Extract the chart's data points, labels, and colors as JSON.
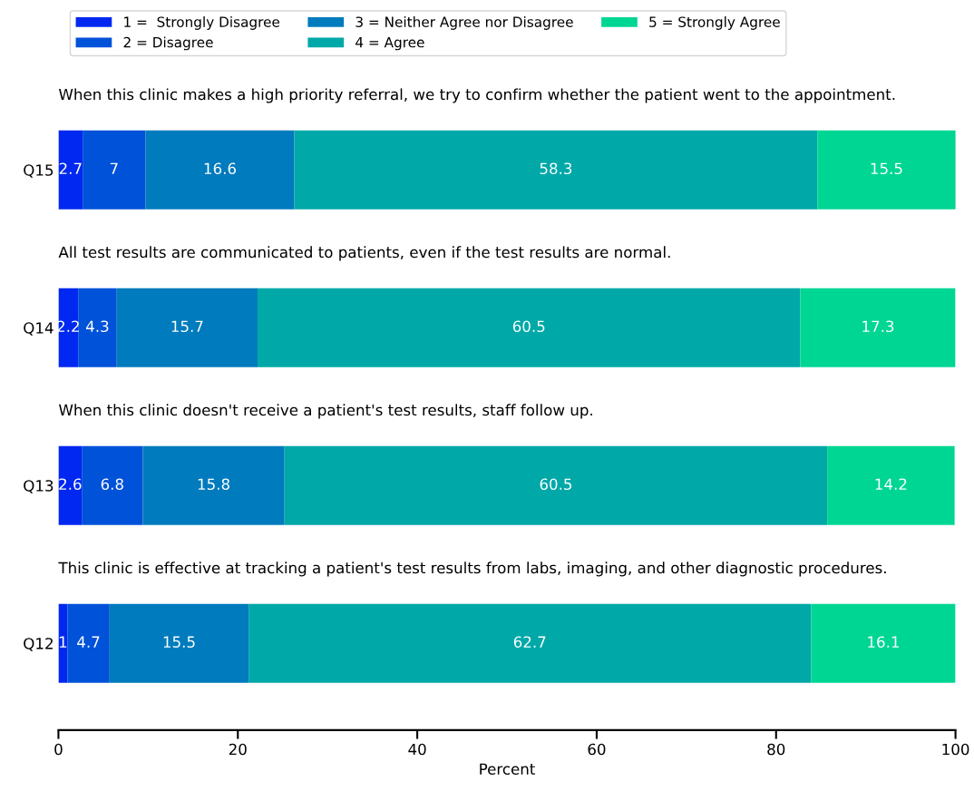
{
  "chart_data": {
    "type": "bar",
    "orientation": "horizontal",
    "stacked": true,
    "data_labels": true,
    "xlabel": "Percent",
    "categories": [
      "Q15",
      "Q14",
      "Q13",
      "Q12"
    ],
    "series": [
      {
        "name": "1 =  Strongly Disagree",
        "color": "#0028f0",
        "values": [
          2.7,
          2.2,
          2.6,
          1
        ]
      },
      {
        "name": "2 = Disagree",
        "color": "#0052d9",
        "values": [
          7,
          4.3,
          6.8,
          4.7
        ]
      },
      {
        "name": "3 = Neither Agree nor Disagree",
        "color": "#007bbd",
        "values": [
          16.6,
          15.7,
          15.8,
          15.5
        ]
      },
      {
        "name": "4 = Agree",
        "color": "#00a8a8",
        "values": [
          58.3,
          60.5,
          60.5,
          62.7
        ]
      },
      {
        "name": "5 = Strongly Agree",
        "color": "#00d693",
        "values": [
          15.5,
          17.3,
          14.2,
          16.1
        ]
      }
    ],
    "annotations": [
      "When this clinic makes a high priority referral, we try to confirm whether the patient went to the appointment.",
      "All test results are communicated to patients, even if the test results are normal.",
      "When this clinic doesn't receive a patient's test results, staff follow up.",
      "This clinic is effective at tracking a patient's test results from labs, imaging, and other diagnostic procedures."
    ],
    "xlim": [
      0,
      100
    ],
    "xticks": [
      0,
      20,
      40,
      60,
      80,
      100
    ],
    "grid": false,
    "legend": "top"
  }
}
